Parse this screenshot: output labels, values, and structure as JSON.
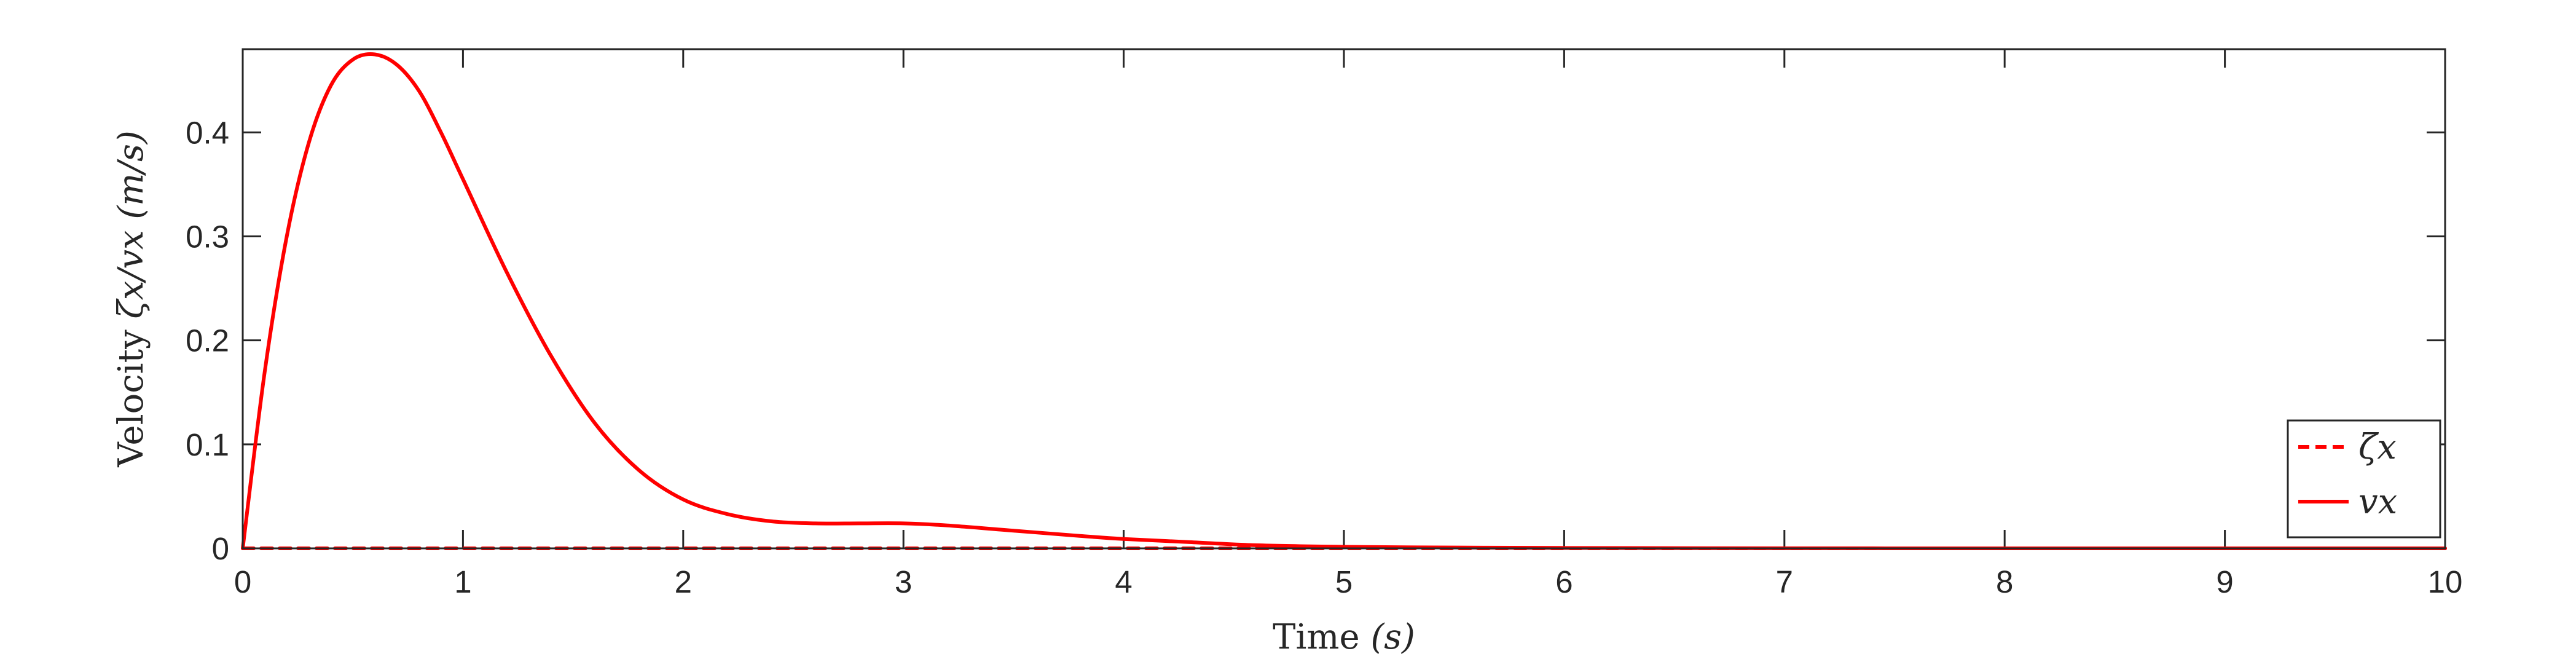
{
  "chart_data": {
    "type": "line",
    "title": "",
    "xlabel": {
      "prefix": "Time ",
      "unit": "(s)"
    },
    "ylabel": {
      "prefix": "Velocity ",
      "math": "ζx/vx (m/s)"
    },
    "xlim": [
      0,
      10
    ],
    "ylim": [
      0,
      0.48
    ],
    "xticks": [
      0,
      1,
      2,
      3,
      4,
      5,
      6,
      7,
      8,
      9,
      10
    ],
    "yticks": [
      0,
      0.1,
      0.2,
      0.3,
      0.4
    ],
    "ytick_labels": [
      "0",
      "0.1",
      "0.2",
      "0.3",
      "0.4"
    ],
    "grid": false,
    "legend_position": "bottom-right",
    "series": [
      {
        "name": "ζx",
        "color": "#ff0000",
        "style": "dashed",
        "x": [
          0,
          10
        ],
        "y": [
          0,
          0
        ]
      },
      {
        "name": "vx",
        "color": "#ff0000",
        "style": "solid",
        "x": [
          0,
          0.1,
          0.2,
          0.3,
          0.4,
          0.5,
          0.6,
          0.7,
          0.8,
          0.9,
          1.0,
          1.2,
          1.4,
          1.6,
          1.8,
          2.0,
          2.2,
          2.4,
          2.6,
          2.8,
          3.0,
          3.2,
          3.5,
          3.8,
          4.0,
          4.3,
          4.6,
          5.0,
          5.5,
          6.0,
          7.0,
          8.0,
          9.0,
          10.0
        ],
        "y": [
          0,
          0.17,
          0.3,
          0.39,
          0.445,
          0.47,
          0.475,
          0.465,
          0.44,
          0.4,
          0.355,
          0.265,
          0.185,
          0.12,
          0.075,
          0.047,
          0.033,
          0.026,
          0.024,
          0.024,
          0.024,
          0.022,
          0.017,
          0.012,
          0.009,
          0.006,
          0.003,
          0.0015,
          0.0008,
          0.0004,
          0.0001,
          0.0,
          0.0,
          0.0
        ]
      }
    ]
  }
}
